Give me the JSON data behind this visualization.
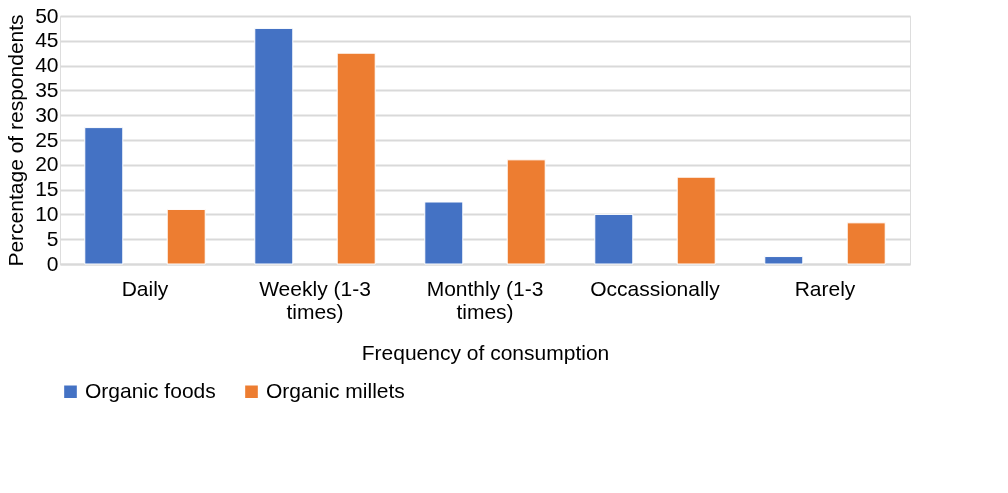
{
  "chart_data": {
    "type": "bar",
    "xlabel": "Frequency of consumption",
    "ylabel": "Percentage of respondents",
    "categories": [
      "Daily",
      "Weekly (1-3 times)",
      "Monthly (1-3 times)",
      "Occassionally",
      "Rarely"
    ],
    "series": [
      {
        "name": "Organic foods",
        "color": "#4472c4",
        "values": [
          27.5,
          47.5,
          12.5,
          10,
          1.5
        ]
      },
      {
        "name": "Organic millets",
        "color": "#ed7d31",
        "values": [
          11,
          42.5,
          21,
          17.5,
          8.3
        ]
      }
    ],
    "ylim": [
      0,
      50
    ],
    "yticks": [
      0,
      5,
      10,
      15,
      20,
      25,
      30,
      35,
      40,
      45,
      50
    ],
    "grid": "y",
    "legend": "bottom"
  }
}
